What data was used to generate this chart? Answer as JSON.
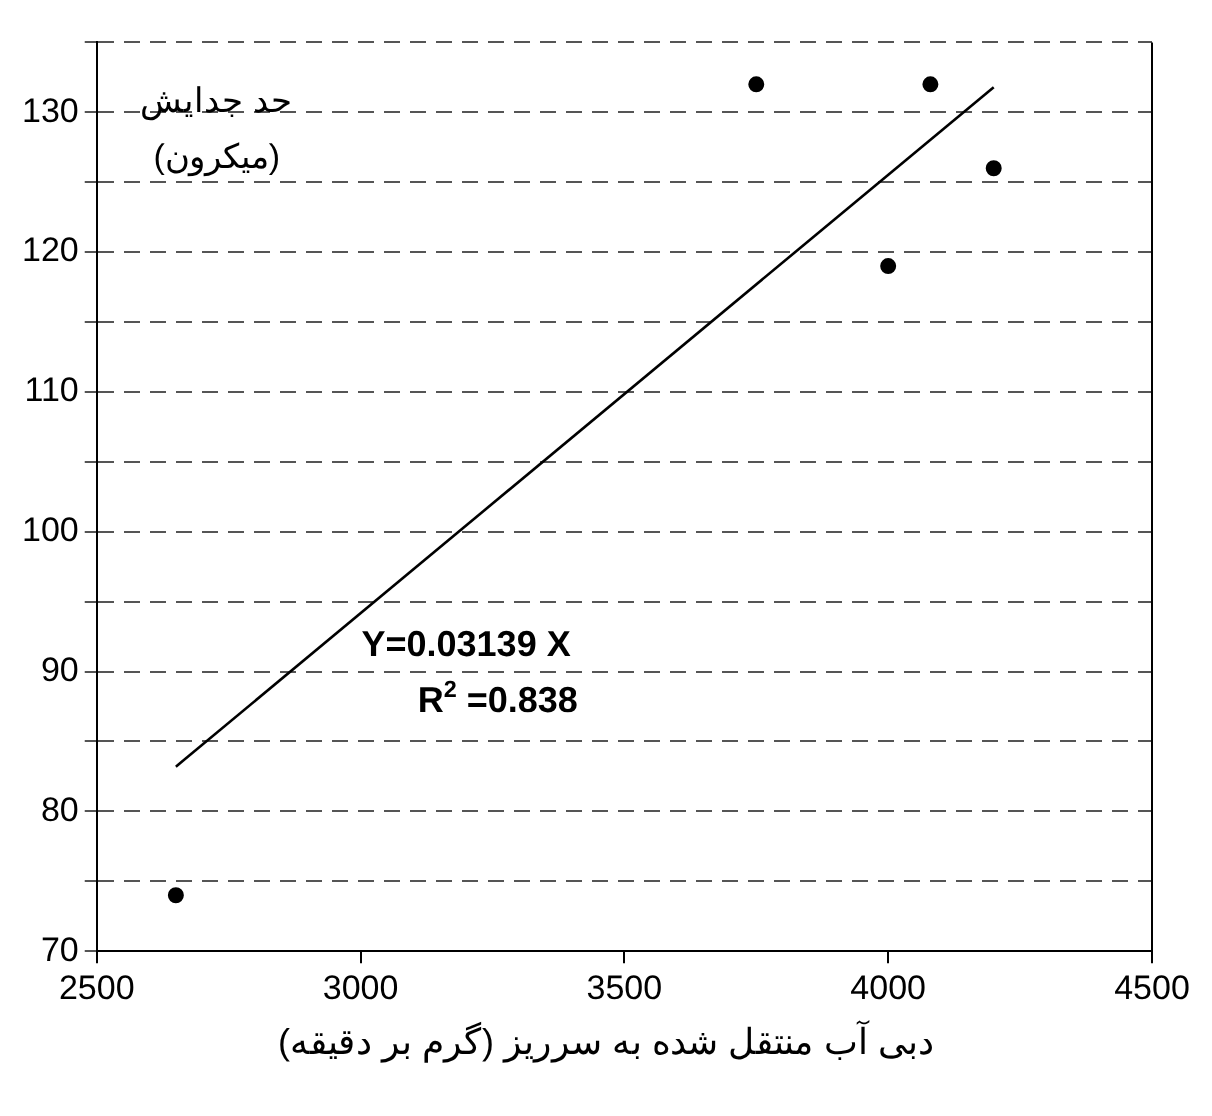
{
  "chart_data": {
    "type": "scatter",
    "xlabel": "دبی آب منتقل شده به سرریز (گرم بر دقیقه)",
    "ylabel": "حد جدایش\n(میکرون)",
    "xlim": [
      2500,
      4500
    ],
    "xticks": [
      2500,
      3000,
      3500,
      4000,
      4500
    ],
    "ylim": [
      70,
      135
    ],
    "yticks": [
      70,
      {
        "value": 75,
        "label": null
      },
      80,
      {
        "value": 85,
        "label": null
      },
      90,
      {
        "value": 95,
        "label": null
      },
      100,
      {
        "value": 105,
        "label": null
      },
      110,
      {
        "value": 115,
        "label": null
      },
      120,
      {
        "value": 125,
        "label": null
      },
      130,
      {
        "value": 135,
        "label": null
      }
    ],
    "grid": "y",
    "marker": "circle",
    "series": [
      {
        "color": "#000000",
        "x": [
          2650,
          3750,
          4080,
          4000,
          4200
        ],
        "values": [
          74,
          132,
          132,
          119,
          126
        ]
      },
      {
        "type": "line",
        "color": "#000000",
        "marker": "none",
        "line_style": "solid",
        "x": [
          2650,
          4200
        ],
        "values": [
          83.2,
          131.8
        ]
      }
    ],
    "annotations": [
      "Y=0.03139 X",
      "R$^{2}$ =0.838"
    ]
  }
}
